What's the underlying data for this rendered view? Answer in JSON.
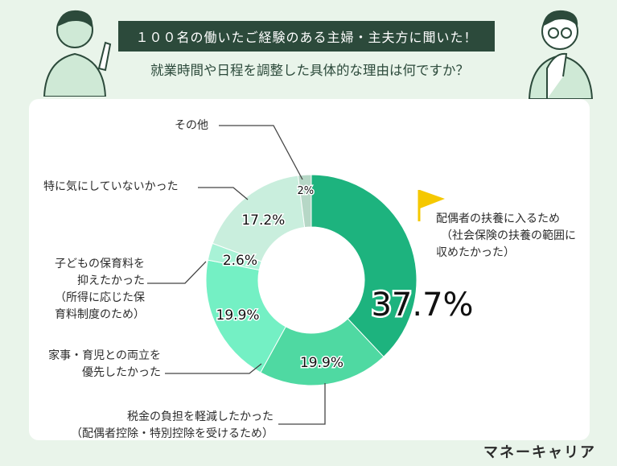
{
  "header": {
    "title": "１００名の働いたご経験のある主婦・主夫方に聞いた！",
    "subtitle": "就業時間や日程を調整した具体的な理由は何ですか？"
  },
  "brand": "マネーキャリア",
  "colors": {
    "background": "#e9f4ea",
    "title_bg": "#2c4a3b",
    "flag": "#f5c800"
  },
  "chart_data": {
    "type": "pie",
    "donut": true,
    "start": "top",
    "direction": "clockwise",
    "slices": [
      {
        "label": "配偶者の扶養に入るため（社会保険の扶養の範囲に収めたかった）",
        "value": 37.7,
        "value_label": "37.7%",
        "color": "#1db37e"
      },
      {
        "label": "税金の負担を軽減したかった（配偶者控除・特別控除を受けるため）",
        "value": 19.9,
        "value_label": "19.9%",
        "color": "#4fd9a2"
      },
      {
        "label": "家事・育児との両立を優先したかった",
        "value": 19.9,
        "value_label": "19.9%",
        "color": "#74f0c4"
      },
      {
        "label": "子どもの保育料を抑えたかった（所得に応じた保育料制度のため）",
        "value": 2.6,
        "value_label": "2.6%",
        "color": "#a8f2d6"
      },
      {
        "label": "特に気にしていないかった",
        "value": 17.2,
        "value_label": "17.2%",
        "color": "#c9eedd"
      },
      {
        "label": "その他",
        "value": 2.0,
        "value_label": "2%",
        "color": "#b6d7c6"
      }
    ]
  },
  "labels": {
    "main_line1": "配偶者の扶養に入るため",
    "main_line2": "（社会保険の扶養の範囲に",
    "main_line3": "収めたかった）",
    "tax_line1": "税金の負担を軽減したかった",
    "tax_line2": "（配偶者控除・特別控除を受けるため）",
    "housework_line1": "家事・育児との両立を",
    "housework_line2": "優先したかった",
    "nursery_line1": "子どもの保育料を",
    "nursery_line2": "抑えたかった",
    "nursery_line3": "（所得に応じた保",
    "nursery_line4": "育料制度のため）",
    "none": "特に気にしていないかった",
    "other": "その他"
  }
}
